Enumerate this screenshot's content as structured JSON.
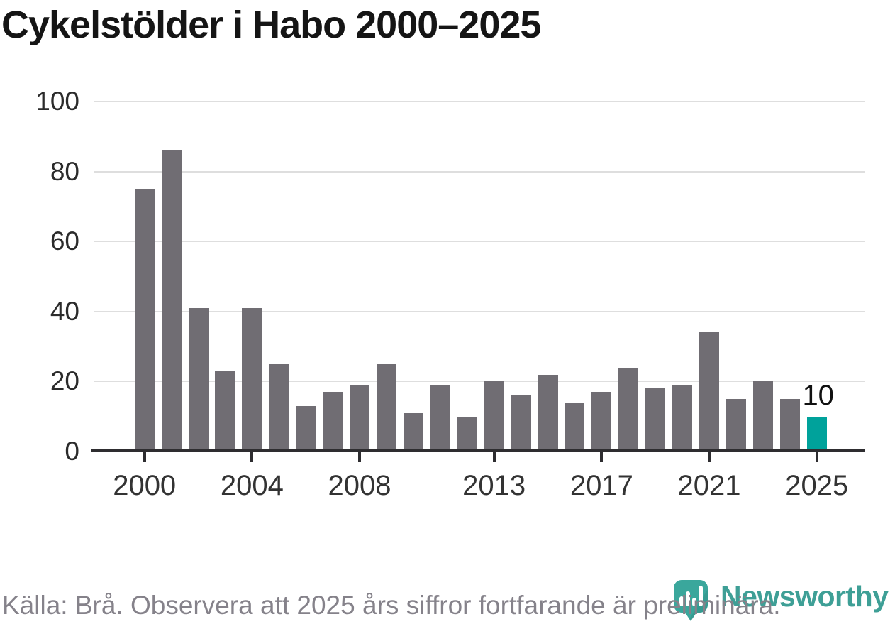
{
  "title": "Cykelstölder i Habo 2000–2025",
  "chart_data": {
    "type": "bar",
    "title": "Cykelstölder i Habo 2000–2025",
    "x": [
      2000,
      2001,
      2002,
      2003,
      2004,
      2005,
      2006,
      2007,
      2008,
      2009,
      2010,
      2011,
      2012,
      2013,
      2014,
      2015,
      2016,
      2017,
      2018,
      2019,
      2020,
      2021,
      2022,
      2023,
      2024,
      2025
    ],
    "values": [
      75,
      86,
      41,
      23,
      41,
      25,
      13,
      17,
      19,
      25,
      11,
      19,
      10,
      20,
      16,
      22,
      14,
      17,
      24,
      18,
      19,
      34,
      15,
      20,
      15,
      10
    ],
    "ylim": [
      0,
      100
    ],
    "yticks": [
      0,
      20,
      40,
      60,
      80,
      100
    ],
    "xtick_years": [
      2000,
      2004,
      2008,
      2013,
      2017,
      2021,
      2025
    ],
    "grid": "horizontal",
    "legend": "none",
    "bar_color": "#706d73",
    "highlight_color": "#00a29b",
    "highlight_year": 2025,
    "annotations": [
      {
        "year": 2025,
        "text": "10"
      }
    ]
  },
  "footer": {
    "source": "Källa: Brå. Observera att 2025 års siffror fortfarande är preliminära.",
    "brand": "Newsworthy",
    "brand_color": "#3e9f96",
    "logo_color": "#3aa79c"
  }
}
